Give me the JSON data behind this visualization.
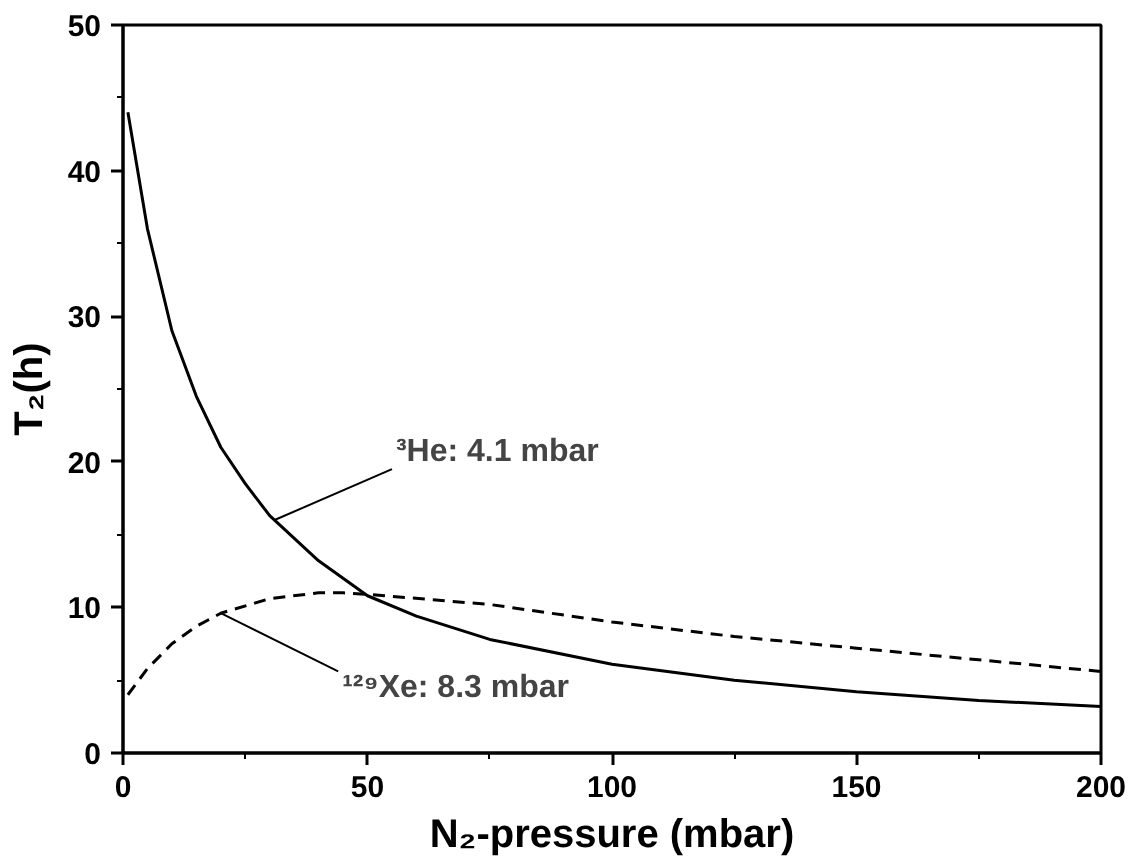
{
  "chart_data": {
    "type": "line",
    "xlabel": "N₂-pressure (mbar)",
    "ylabel": "T₂(h)",
    "xlim": [
      0,
      200
    ],
    "ylim": [
      0,
      50
    ],
    "xticks": [
      0,
      50,
      100,
      150,
      200
    ],
    "yticks": [
      0,
      10,
      20,
      30,
      40,
      50
    ],
    "grid": false,
    "series": [
      {
        "color": "#000000",
        "line_style": "solid",
        "x": [
          1,
          5,
          10,
          15,
          20,
          25,
          30,
          40,
          50,
          60,
          75,
          100,
          125,
          150,
          175,
          200
        ],
        "values": [
          44,
          36,
          29,
          24.5,
          21,
          18.5,
          16.3,
          13.2,
          10.8,
          9.4,
          7.8,
          6.1,
          5.0,
          4.2,
          3.6,
          3.2
        ]
      },
      {
        "color": "#000000",
        "line_style": "dashed",
        "x": [
          1,
          5,
          10,
          15,
          20,
          30,
          40,
          45,
          50,
          75,
          100,
          125,
          150,
          175,
          200
        ],
        "values": [
          4.0,
          5.8,
          7.5,
          8.7,
          9.6,
          10.6,
          11.0,
          11.0,
          10.9,
          10.2,
          9.0,
          8.0,
          7.2,
          6.4,
          5.6
        ]
      }
    ],
    "annotations": [
      {
        "text": "³He: 4.1 mbar",
        "x": 31,
        "y": 16.0
      },
      {
        "text": "¹²⁹Xe: 8.3 mbar",
        "x": 20,
        "y": 9.6
      }
    ]
  }
}
